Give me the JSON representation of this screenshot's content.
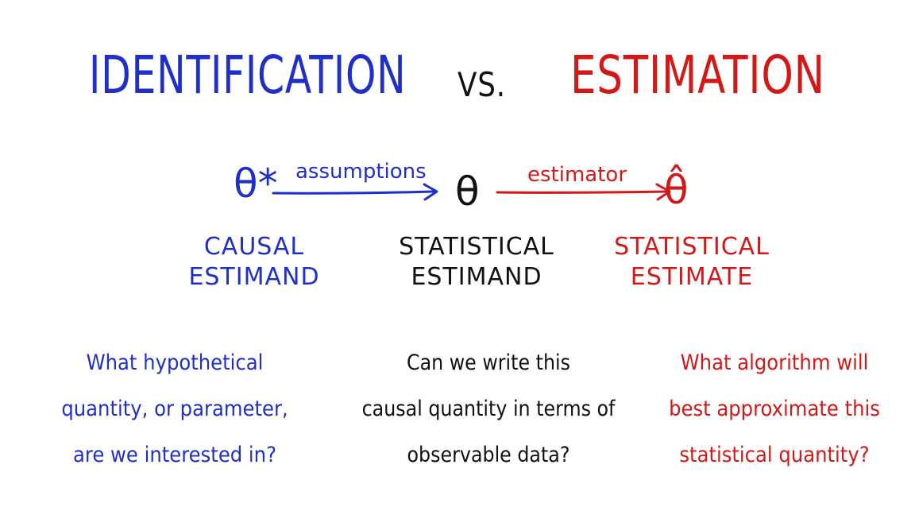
{
  "title": {
    "left": "IDENTIFICATION",
    "middle": "VS.",
    "right": "ESTIMATION"
  },
  "flow": {
    "causal_symbol": "θ*",
    "statistical_symbol": "θ",
    "estimate_symbol": "θ̂",
    "arrow1_label": "assumptions",
    "arrow2_label": "estimator"
  },
  "terms": {
    "causal": {
      "line1": "CAUSAL",
      "line2": "ESTIMAND"
    },
    "statistical": {
      "line1": "STATISTICAL",
      "line2": "ESTIMAND"
    },
    "estimate": {
      "line1": "STATISTICAL",
      "line2": "ESTIMATE"
    }
  },
  "questions": {
    "causal": [
      "What hypothetical",
      "quantity, or parameter,",
      "are we interested in?"
    ],
    "statistical": [
      "Can we write this",
      "causal quantity in terms of",
      "observable data?"
    ],
    "estimate": [
      "What algorithm will",
      "best approximate this",
      "statistical quantity?"
    ]
  },
  "colors": {
    "identification": "#1f2fc8",
    "estimation": "#d41818",
    "neutral": "#111111"
  }
}
